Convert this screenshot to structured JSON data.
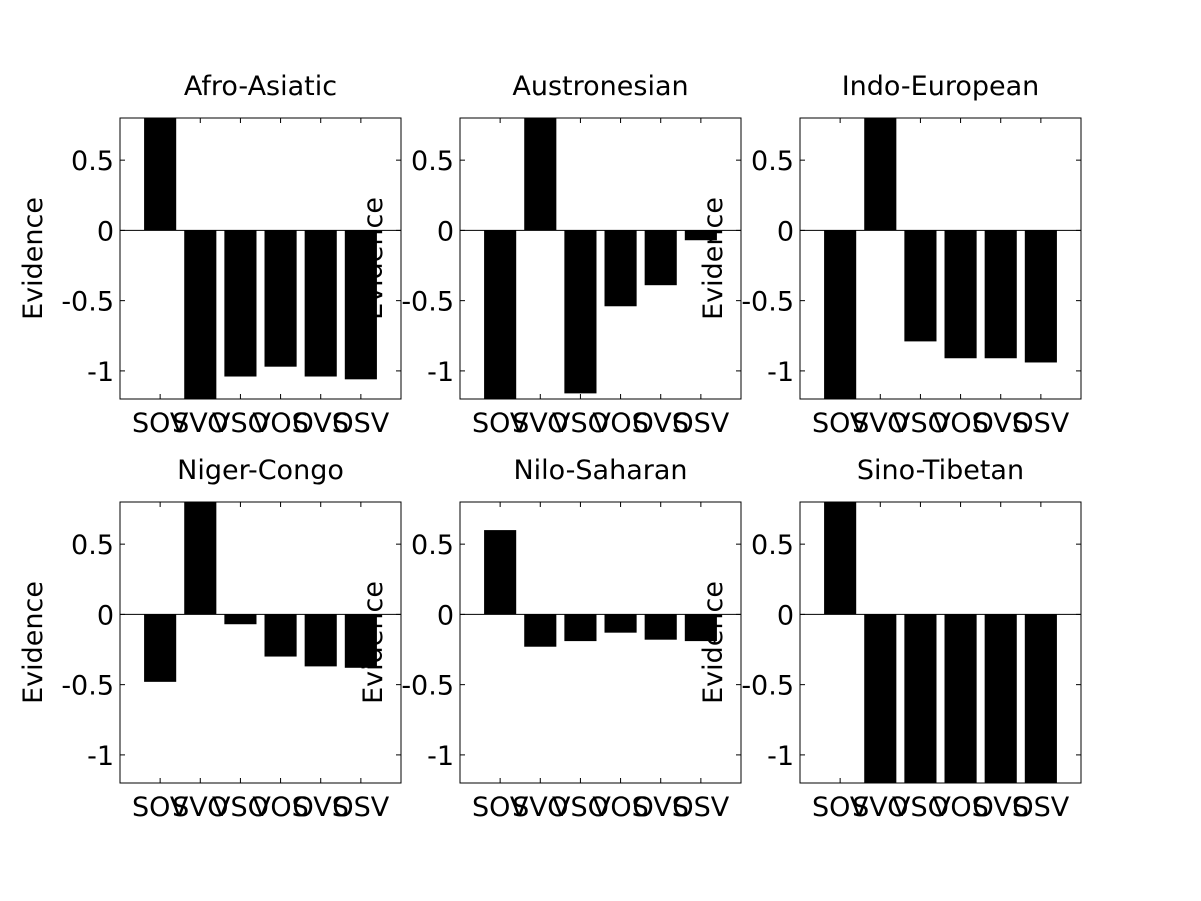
{
  "colors": {
    "bar": "#000000",
    "axis": "#000000",
    "background": "#ffffff"
  },
  "chart_data": [
    {
      "type": "bar",
      "title": "Afro-Asiatic",
      "ylabel": "Evidence",
      "categories": [
        "SOV",
        "SVO",
        "VSO",
        "VOS",
        "OVS",
        "OSV"
      ],
      "values": [
        0.83,
        -1.25,
        -1.04,
        -0.97,
        -1.04,
        -1.06
      ],
      "ylim": [
        -1.2,
        0.8
      ],
      "yticks": [
        0.5,
        0,
        -0.5,
        -1
      ],
      "ytick_labels": [
        "0.5",
        "0",
        "-0.5",
        "-1"
      ],
      "grid": false
    },
    {
      "type": "bar",
      "title": "Austronesian",
      "ylabel": "Evidence",
      "categories": [
        "SOV",
        "SVO",
        "VSO",
        "VOS",
        "OVS",
        "OSV"
      ],
      "values": [
        -1.25,
        0.83,
        -1.16,
        -0.54,
        -0.39,
        -0.07
      ],
      "ylim": [
        -1.2,
        0.8
      ],
      "yticks": [
        0.5,
        0,
        -0.5,
        -1
      ],
      "ytick_labels": [
        "0.5",
        "0",
        "-0.5",
        "-1"
      ],
      "grid": false
    },
    {
      "type": "bar",
      "title": "Indo-European",
      "ylabel": "Evidence",
      "categories": [
        "SOV",
        "SVO",
        "VSO",
        "VOS",
        "OVS",
        "OSV"
      ],
      "values": [
        -1.25,
        0.83,
        -0.79,
        -0.91,
        -0.91,
        -0.94
      ],
      "ylim": [
        -1.2,
        0.8
      ],
      "yticks": [
        0.5,
        0,
        -0.5,
        -1
      ],
      "ytick_labels": [
        "0.5",
        "0",
        "-0.5",
        "-1"
      ],
      "grid": false
    },
    {
      "type": "bar",
      "title": "Niger-Congo",
      "ylabel": "Evidence",
      "categories": [
        "SOV",
        "SVO",
        "VSO",
        "VOS",
        "OVS",
        "OSV"
      ],
      "values": [
        -0.48,
        0.83,
        -0.07,
        -0.3,
        -0.37,
        -0.38
      ],
      "ylim": [
        -1.2,
        0.8
      ],
      "yticks": [
        0.5,
        0,
        -0.5,
        -1
      ],
      "ytick_labels": [
        "0.5",
        "0",
        "-0.5",
        "-1"
      ],
      "grid": false
    },
    {
      "type": "bar",
      "title": "Nilo-Saharan",
      "ylabel": "Evidence",
      "categories": [
        "SOV",
        "SVO",
        "VSO",
        "VOS",
        "OVS",
        "OSV"
      ],
      "values": [
        0.6,
        -0.23,
        -0.19,
        -0.13,
        -0.18,
        -0.19
      ],
      "ylim": [
        -1.2,
        0.8
      ],
      "yticks": [
        0.5,
        0,
        -0.5,
        -1
      ],
      "ytick_labels": [
        "0.5",
        "0",
        "-0.5",
        "-1"
      ],
      "grid": false
    },
    {
      "type": "bar",
      "title": "Sino-Tibetan",
      "ylabel": "Evidence",
      "categories": [
        "SOV",
        "SVO",
        "VSO",
        "VOS",
        "OVS",
        "OSV"
      ],
      "values": [
        0.83,
        -1.25,
        -1.25,
        -1.25,
        -1.25,
        -1.25
      ],
      "ylim": [
        -1.2,
        0.8
      ],
      "yticks": [
        0.5,
        0,
        -0.5,
        -1
      ],
      "ytick_labels": [
        "0.5",
        "0",
        "-0.5",
        "-1"
      ],
      "grid": false
    }
  ]
}
